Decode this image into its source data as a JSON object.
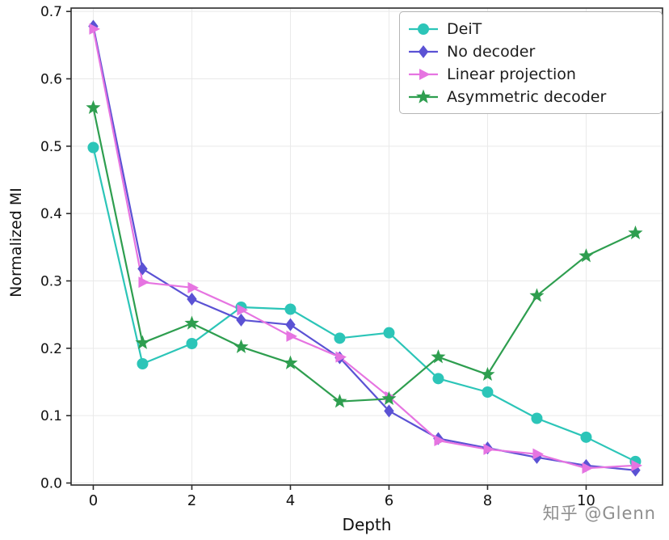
{
  "watermark": {
    "text": "知乎 @Glenn"
  },
  "chart_data": {
    "type": "line",
    "title": "",
    "xlabel": "Depth",
    "ylabel": "Normalized MI",
    "grid": true,
    "legend_position": "upper right",
    "x": [
      0,
      1,
      2,
      3,
      4,
      5,
      6,
      7,
      8,
      9,
      10,
      11
    ],
    "xlim": [
      -0.45,
      11.55
    ],
    "ylim": [
      -0.003,
      0.705
    ],
    "xticks": [
      0,
      2,
      4,
      6,
      8,
      10
    ],
    "yticks": [
      0.0,
      0.1,
      0.2,
      0.3,
      0.4,
      0.5,
      0.6,
      0.7
    ],
    "series": [
      {
        "name": "DeiT",
        "color": "#2cc5b8",
        "marker": "circle",
        "values": [
          0.498,
          0.177,
          0.207,
          0.261,
          0.258,
          0.215,
          0.223,
          0.155,
          0.135,
          0.096,
          0.068,
          0.032
        ]
      },
      {
        "name": "No decoder",
        "color": "#5b52d4",
        "marker": "diamond",
        "values": [
          0.678,
          0.318,
          0.273,
          0.242,
          0.235,
          0.186,
          0.107,
          0.066,
          0.052,
          0.038,
          0.026,
          0.019
        ]
      },
      {
        "name": "Linear projection",
        "color": "#e674e1",
        "marker": "triangle-right",
        "values": [
          0.674,
          0.298,
          0.29,
          0.257,
          0.218,
          0.187,
          0.128,
          0.063,
          0.05,
          0.043,
          0.022,
          0.026
        ]
      },
      {
        "name": "Asymmetric decoder",
        "color": "#2e9e4f",
        "marker": "star",
        "values": [
          0.557,
          0.208,
          0.237,
          0.202,
          0.178,
          0.121,
          0.125,
          0.187,
          0.161,
          0.278,
          0.337,
          0.371
        ]
      }
    ]
  }
}
